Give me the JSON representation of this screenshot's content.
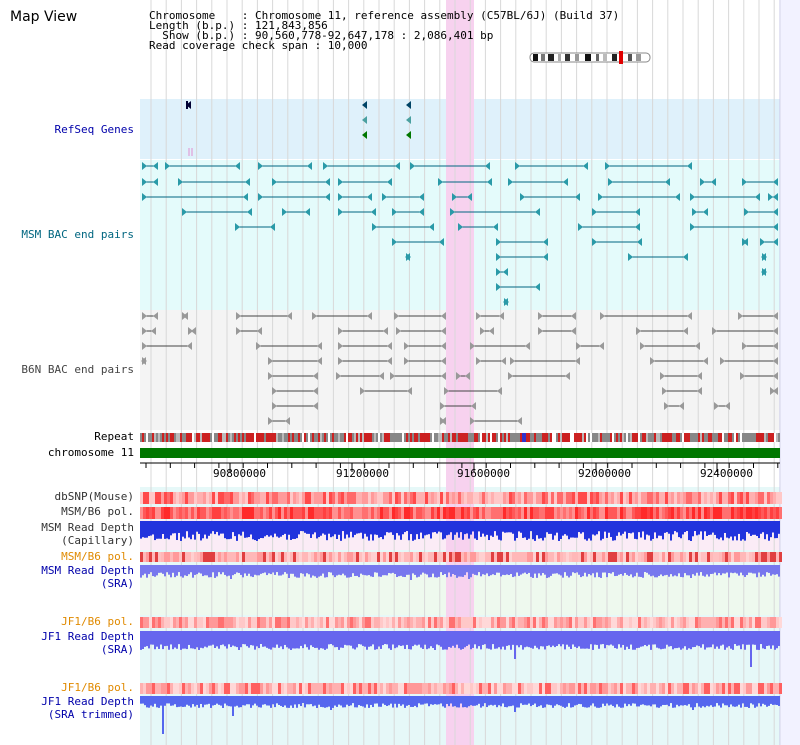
{
  "view_title": "Map View",
  "header": {
    "chromosome_line": "Chromosome    : Chromosome 11, reference assembly (C57BL/6J) (Build 37)",
    "length_line": "Length (b.p.) : 121,843,856",
    "show_line": "  Show (b.p.) : 90,560,778-92,647,178 : 2,086,401 bp",
    "span_line": "Read coverage check span : 10,000"
  },
  "tracks": {
    "refseq": "RefSeq Genes",
    "msm_bac": "MSM BAC end pairs",
    "b6n_bac": "B6N BAC end pairs",
    "repeat": "Repeat",
    "chromosome": "chromosome 11",
    "dbsnp": "dbSNP(Mouse)",
    "msm_b6_pol_1": "MSM/B6 pol.",
    "msm_depth_cap_1": "MSM Read Depth",
    "msm_depth_cap_2": "(Capillary)",
    "msm_b6_pol_2": "MSM/B6 pol.",
    "msm_depth_sra_1": "MSM Read Depth",
    "msm_depth_sra_2": "(SRA)",
    "jf1_b6_pol_1": "JF1/B6 pol.",
    "jf1_depth_sra_1": "JF1 Read Depth",
    "jf1_depth_sra_2": "(SRA)",
    "jf1_b6_pol_2": "JF1/B6 pol.",
    "jf1_depth_trim_1": "JF1 Read Depth",
    "jf1_depth_trim_2": "(SRA trimmed)"
  },
  "axis_ticks": [
    "90800000",
    "91200000",
    "91600000",
    "92000000",
    "92400000"
  ],
  "colors": {
    "refseq_bg": "#dff1fb",
    "msm_bac_bg": "#e4fbfb",
    "b6n_bac_bg": "#f4f4f4",
    "highlight": "#f7d2ef",
    "msm_label": "#006680",
    "b6n_label": "#444444",
    "refseq_label": "#0000aa",
    "pol_label": "#e08a00",
    "depth_label": "#0000aa",
    "chromosome_bar": "#007700"
  }
}
